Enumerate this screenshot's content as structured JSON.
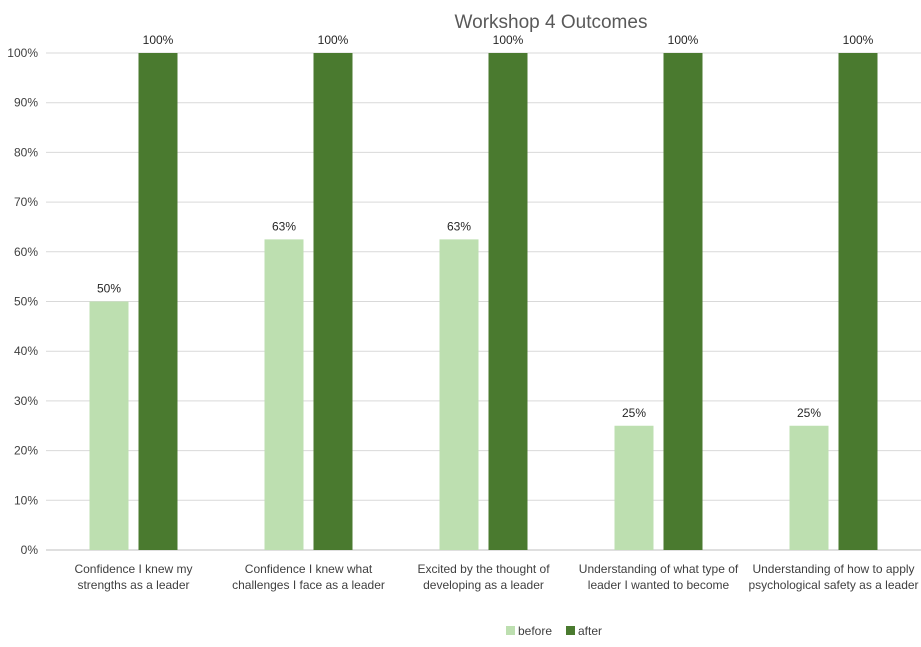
{
  "chart_data": {
    "type": "bar",
    "title": "Workshop 4 Outcomes",
    "xlabel": "",
    "ylabel": "",
    "ylim": [
      0,
      100
    ],
    "yticks": [
      "0%",
      "10%",
      "20%",
      "30%",
      "40%",
      "50%",
      "60%",
      "70%",
      "80%",
      "90%",
      "100%"
    ],
    "grid": true,
    "legend_position": "bottom",
    "categories": [
      [
        "Confidence I knew my",
        "strengths as a leader"
      ],
      [
        "Confidence I knew what",
        "challenges I face as a leader"
      ],
      [
        "Excited by the thought of",
        "developing as a leader"
      ],
      [
        "Understanding of what type of",
        "leader I wanted to become"
      ],
      [
        "Understanding of how to apply",
        "psychological safety as a leader"
      ]
    ],
    "series": [
      {
        "name": "before",
        "color": "#bddfb0",
        "values": [
          50,
          62.5,
          62.5,
          25,
          25
        ],
        "labels": [
          "50%",
          "63%",
          "63%",
          "25%",
          "25%"
        ]
      },
      {
        "name": "after",
        "color": "#4a7a2f",
        "values": [
          100,
          100,
          100,
          100,
          100
        ],
        "labels": [
          "100%",
          "100%",
          "100%",
          "100%",
          "100%"
        ]
      }
    ]
  }
}
